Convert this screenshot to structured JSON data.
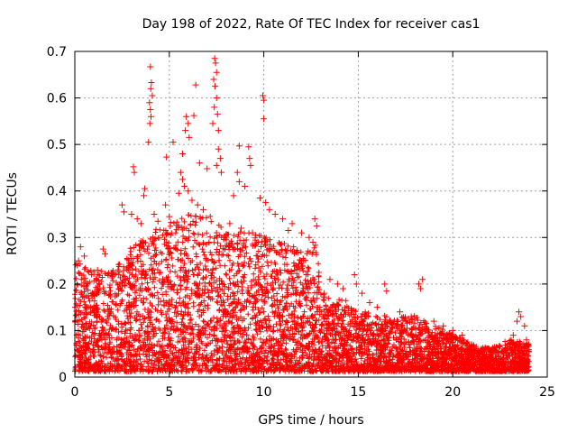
{
  "chart_data": {
    "type": "scatter",
    "title": "Day 198 of 2022, Rate Of TEC Index for receiver cas1",
    "xlabel": "GPS time / hours",
    "ylabel": "ROTI / TECUs",
    "xlim": [
      0,
      25
    ],
    "ylim": [
      0,
      0.7
    ],
    "x_ticks": [
      0,
      5,
      10,
      15,
      20,
      25
    ],
    "y_ticks": [
      0,
      0.1,
      0.2,
      0.3,
      0.4,
      0.5,
      0.6,
      0.7
    ],
    "x_tick_labels": [
      "0",
      "5",
      "10",
      "15",
      "20",
      "25"
    ],
    "y_tick_labels": [
      "0",
      "0.1",
      "0.2",
      "0.3",
      "0.4",
      "0.5",
      "0.6",
      "0.7"
    ],
    "grid": true,
    "marker": "+",
    "marker_color": "#ff0000",
    "envelope": {
      "description_hours": [
        0,
        1,
        2,
        3,
        4,
        5,
        6,
        7,
        8,
        9,
        10,
        11,
        12,
        12.8,
        13,
        14,
        15,
        16,
        17,
        18,
        19,
        20,
        21,
        22,
        23,
        24
      ],
      "upper_roti": [
        0.24,
        0.22,
        0.22,
        0.27,
        0.3,
        0.32,
        0.34,
        0.34,
        0.3,
        0.3,
        0.3,
        0.28,
        0.26,
        0.28,
        0.17,
        0.16,
        0.14,
        0.12,
        0.12,
        0.12,
        0.1,
        0.08,
        0.06,
        0.05,
        0.07,
        0.06
      ]
    },
    "points": [
      [
        4.0,
        0.667
      ],
      [
        4.05,
        0.633
      ],
      [
        4.02,
        0.62
      ],
      [
        4.1,
        0.605
      ],
      [
        3.95,
        0.59
      ],
      [
        4.0,
        0.575
      ],
      [
        4.03,
        0.56
      ],
      [
        3.97,
        0.545
      ],
      [
        7.4,
        0.685
      ],
      [
        7.45,
        0.675
      ],
      [
        7.5,
        0.655
      ],
      [
        7.35,
        0.64
      ],
      [
        7.42,
        0.625
      ],
      [
        7.5,
        0.6
      ],
      [
        7.38,
        0.58
      ],
      [
        7.55,
        0.565
      ],
      [
        7.3,
        0.545
      ],
      [
        7.6,
        0.53
      ],
      [
        6.4,
        0.628
      ],
      [
        9.95,
        0.605
      ],
      [
        10.0,
        0.595
      ],
      [
        10.0,
        0.555
      ],
      [
        5.9,
        0.56
      ],
      [
        6.0,
        0.545
      ],
      [
        5.85,
        0.53
      ],
      [
        6.05,
        0.515
      ],
      [
        6.3,
        0.562
      ],
      [
        3.9,
        0.505
      ],
      [
        5.2,
        0.505
      ],
      [
        4.85,
        0.473
      ],
      [
        8.7,
        0.497
      ],
      [
        9.2,
        0.495
      ],
      [
        9.25,
        0.47
      ],
      [
        9.3,
        0.455
      ],
      [
        7.6,
        0.49
      ],
      [
        7.7,
        0.47
      ],
      [
        7.5,
        0.455
      ],
      [
        7.75,
        0.44
      ],
      [
        5.7,
        0.48
      ],
      [
        6.6,
        0.46
      ],
      [
        7.0,
        0.448
      ],
      [
        3.1,
        0.452
      ],
      [
        3.15,
        0.44
      ],
      [
        3.7,
        0.405
      ],
      [
        3.65,
        0.39
      ],
      [
        8.6,
        0.44
      ],
      [
        8.7,
        0.42
      ],
      [
        9.0,
        0.41
      ],
      [
        8.4,
        0.39
      ],
      [
        5.6,
        0.44
      ],
      [
        5.7,
        0.425
      ],
      [
        5.8,
        0.41
      ],
      [
        5.5,
        0.395
      ],
      [
        6.0,
        0.4
      ],
      [
        6.2,
        0.38
      ],
      [
        6.5,
        0.37
      ],
      [
        6.8,
        0.36
      ],
      [
        2.5,
        0.37
      ],
      [
        2.6,
        0.355
      ],
      [
        3.0,
        0.35
      ],
      [
        3.3,
        0.34
      ],
      [
        3.5,
        0.33
      ],
      [
        4.2,
        0.35
      ],
      [
        4.4,
        0.335
      ],
      [
        4.8,
        0.37
      ],
      [
        5.0,
        0.345
      ],
      [
        9.8,
        0.385
      ],
      [
        10.1,
        0.375
      ],
      [
        10.3,
        0.36
      ],
      [
        10.6,
        0.35
      ],
      [
        11.0,
        0.34
      ],
      [
        11.5,
        0.33
      ],
      [
        11.3,
        0.315
      ],
      [
        12.0,
        0.31
      ],
      [
        12.4,
        0.3
      ],
      [
        12.7,
        0.34
      ],
      [
        12.8,
        0.325
      ],
      [
        12.6,
        0.29
      ],
      [
        8.2,
        0.33
      ],
      [
        8.8,
        0.32
      ],
      [
        9.4,
        0.31
      ],
      [
        7.9,
        0.3
      ],
      [
        9.7,
        0.29
      ],
      [
        1.5,
        0.275
      ],
      [
        1.6,
        0.265
      ],
      [
        0.5,
        0.26
      ],
      [
        0.3,
        0.28
      ],
      [
        0.2,
        0.25
      ],
      [
        1.2,
        0.23
      ],
      [
        2.1,
        0.22
      ],
      [
        2.9,
        0.24
      ],
      [
        14.8,
        0.22
      ],
      [
        14.9,
        0.2
      ],
      [
        15.2,
        0.18
      ],
      [
        16.4,
        0.2
      ],
      [
        16.5,
        0.185
      ],
      [
        18.2,
        0.2
      ],
      [
        18.3,
        0.19
      ],
      [
        18.4,
        0.21
      ],
      [
        13.9,
        0.2
      ],
      [
        14.2,
        0.19
      ],
      [
        13.5,
        0.21
      ],
      [
        13.2,
        0.18
      ],
      [
        15.6,
        0.16
      ],
      [
        16.0,
        0.15
      ],
      [
        17.2,
        0.14
      ],
      [
        17.8,
        0.13
      ],
      [
        19.0,
        0.12
      ],
      [
        19.5,
        0.11
      ],
      [
        20.0,
        0.1
      ],
      [
        20.5,
        0.09
      ],
      [
        21.0,
        0.07
      ],
      [
        21.5,
        0.06
      ],
      [
        22.0,
        0.05
      ],
      [
        22.6,
        0.055
      ],
      [
        23.5,
        0.14
      ],
      [
        23.6,
        0.13
      ],
      [
        23.4,
        0.12
      ],
      [
        23.8,
        0.11
      ],
      [
        23.2,
        0.09
      ],
      [
        23.9,
        0.08
      ]
    ]
  }
}
